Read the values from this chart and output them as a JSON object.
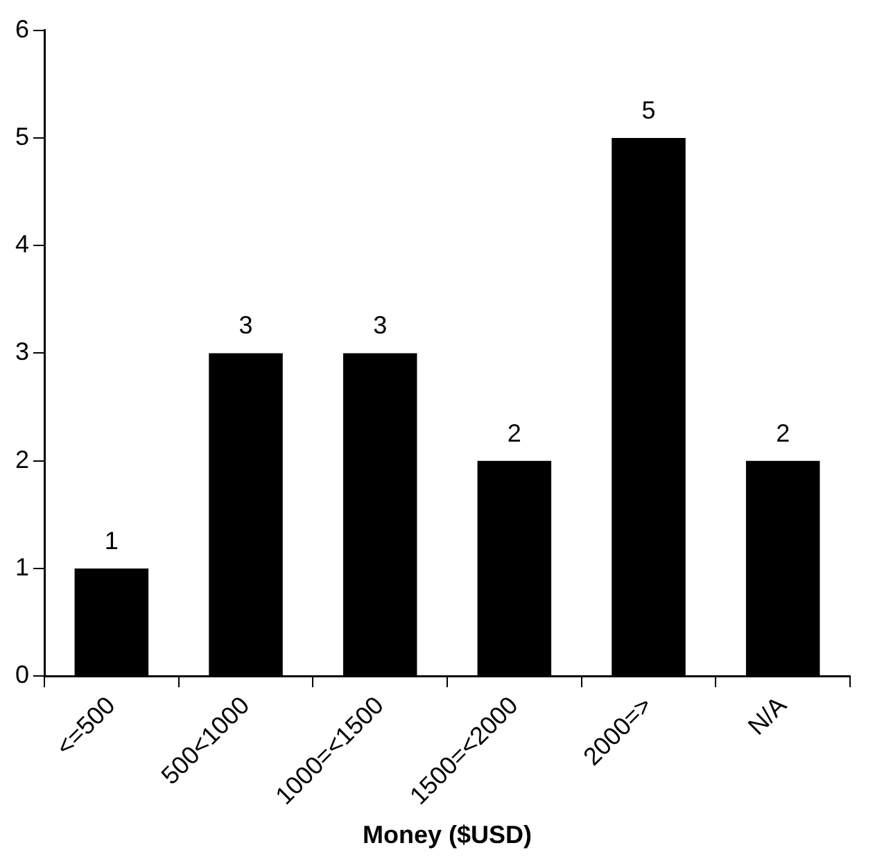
{
  "chart_data": {
    "type": "bar",
    "xlabel": "Money ($USD)",
    "categories": [
      "<=500",
      "500<1000",
      "1000=<1500",
      "1500=<2000",
      "2000=>",
      "N/A"
    ],
    "values": [
      1,
      3,
      3,
      2,
      5,
      2
    ],
    "color": "#000000",
    "ylim": [
      0,
      6
    ],
    "yticks": [
      0,
      1,
      2,
      3,
      4,
      5,
      6
    ],
    "grid": false,
    "data_labels": true
  }
}
